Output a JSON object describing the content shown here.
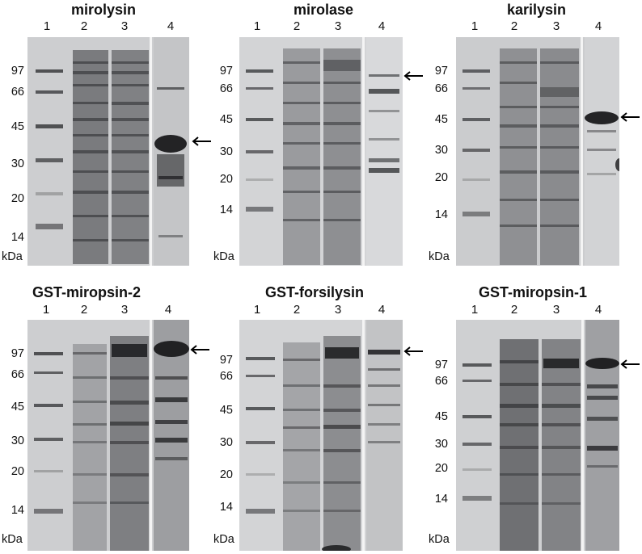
{
  "gels": [
    {
      "id": "mirolysin",
      "title": "mirolysin",
      "lanes": [
        "1",
        "2",
        "3",
        "4"
      ],
      "markers": [
        "97",
        "66",
        "45",
        "30",
        "20",
        "14"
      ],
      "unit": "kDa",
      "arrow_target": "arrow-icon"
    },
    {
      "id": "mirolase",
      "title": "mirolase",
      "lanes": [
        "1",
        "2",
        "3",
        "4"
      ],
      "markers": [
        "97",
        "66",
        "45",
        "30",
        "20",
        "14"
      ],
      "unit": "kDa",
      "arrow_target": "arrow-icon"
    },
    {
      "id": "karilysin",
      "title": "karilysin",
      "lanes": [
        "1",
        "2",
        "3",
        "4"
      ],
      "markers": [
        "97",
        "66",
        "45",
        "30",
        "20",
        "14"
      ],
      "unit": "kDa",
      "arrow_target": "arrow-icon"
    },
    {
      "id": "gst-miropsin-2",
      "title": "GST-miropsin-2",
      "lanes": [
        "1",
        "2",
        "3",
        "4"
      ],
      "markers": [
        "97",
        "66",
        "45",
        "30",
        "20",
        "14"
      ],
      "unit": "kDa",
      "arrow_target": "arrow-icon"
    },
    {
      "id": "gst-forsilysin",
      "title": "GST-forsilysin",
      "lanes": [
        "1",
        "2",
        "3",
        "4"
      ],
      "markers": [
        "97",
        "66",
        "45",
        "30",
        "20",
        "14"
      ],
      "unit": "kDa",
      "arrow_target": "arrow-icon"
    },
    {
      "id": "gst-miropsin-1",
      "title": "GST-miropsin-1",
      "lanes": [
        "1",
        "2",
        "3",
        "4"
      ],
      "markers": [
        "97",
        "66",
        "45",
        "30",
        "20",
        "14"
      ],
      "unit": "kDa",
      "arrow_target": "arrow-icon"
    }
  ]
}
